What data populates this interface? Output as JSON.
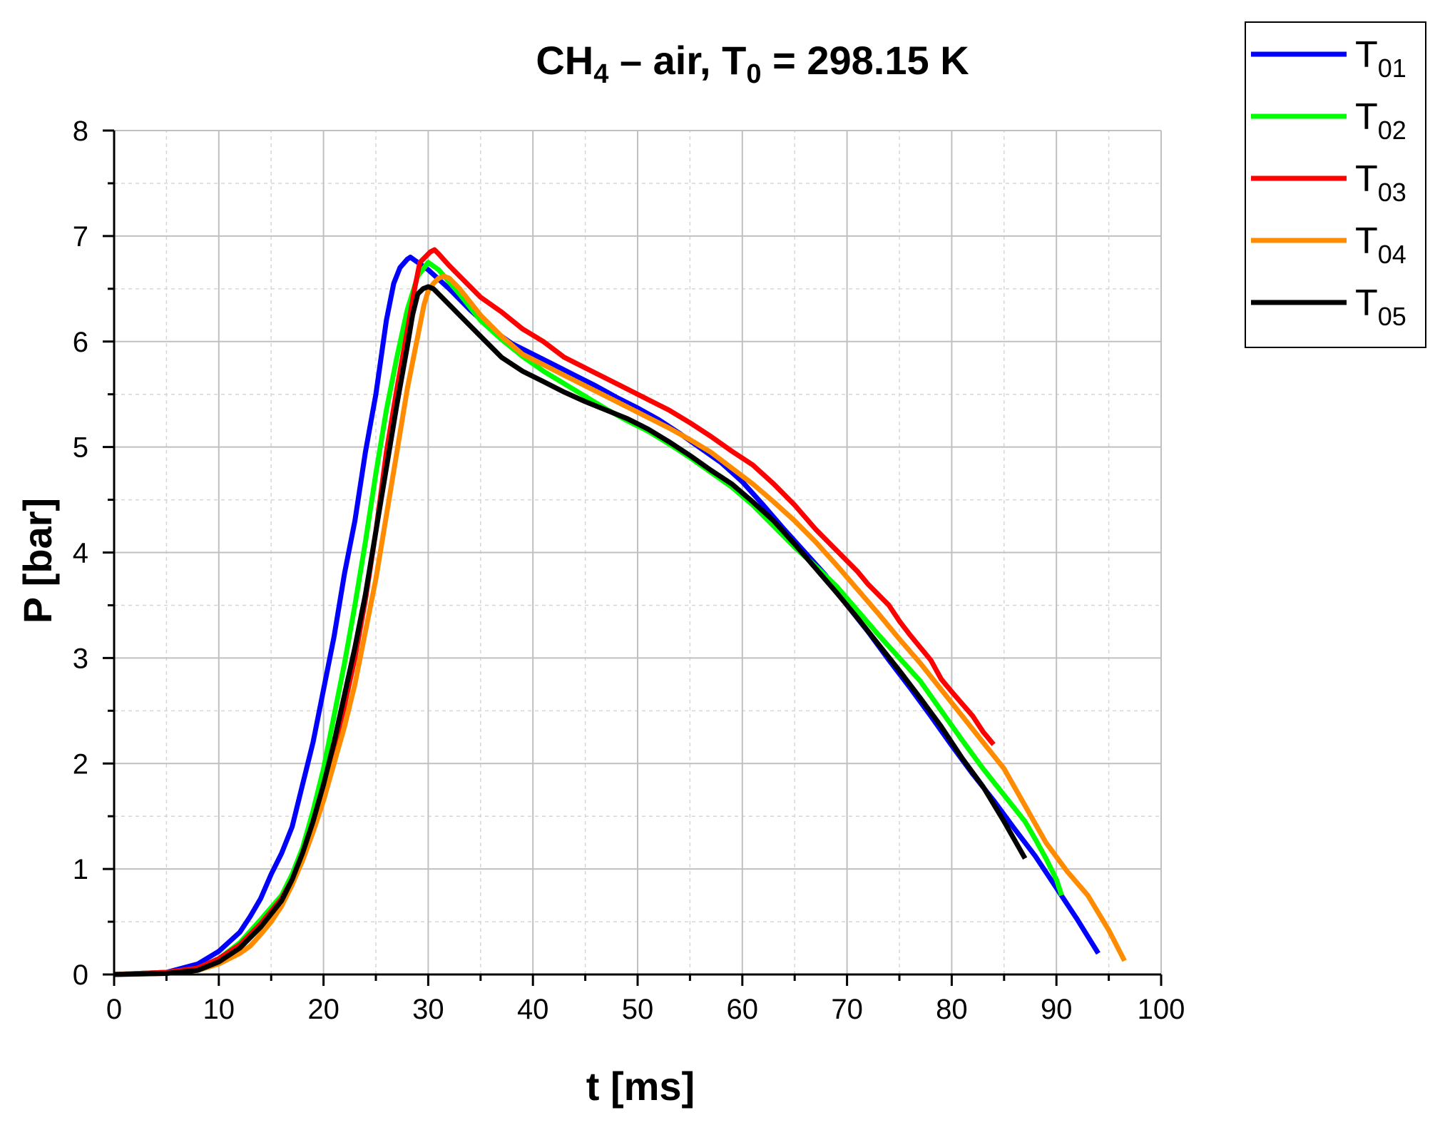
{
  "chart_data": {
    "type": "line",
    "title": {
      "prefix": "CH",
      "prefix_sub": "4",
      "middle": " – air, T",
      "middle_sub": "0",
      "suffix": " = 298.15 K"
    },
    "xlabel": "t [ms]",
    "ylabel": "P [bar]",
    "xlim": [
      0,
      100
    ],
    "ylim": [
      0,
      8
    ],
    "x_ticks": [
      "0",
      "10",
      "20",
      "30",
      "40",
      "50",
      "60",
      "70",
      "80",
      "90",
      "100"
    ],
    "y_ticks": [
      "0",
      "1",
      "2",
      "3",
      "4",
      "5",
      "6",
      "7",
      "8"
    ],
    "grid": true,
    "legend_position": "top-right outside",
    "series": [
      {
        "name": "T",
        "sub": "01",
        "color": "#0000ff",
        "points": [
          [
            0,
            0
          ],
          [
            5,
            0.02
          ],
          [
            8,
            0.1
          ],
          [
            10,
            0.22
          ],
          [
            12,
            0.4
          ],
          [
            13,
            0.55
          ],
          [
            14,
            0.72
          ],
          [
            15,
            0.95
          ],
          [
            16,
            1.15
          ],
          [
            17,
            1.4
          ],
          [
            18,
            1.8
          ],
          [
            19,
            2.2
          ],
          [
            20,
            2.7
          ],
          [
            21,
            3.2
          ],
          [
            22,
            3.8
          ],
          [
            23,
            4.3
          ],
          [
            24,
            4.95
          ],
          [
            25,
            5.5
          ],
          [
            26,
            6.2
          ],
          [
            26.7,
            6.55
          ],
          [
            27.3,
            6.7
          ],
          [
            28,
            6.78
          ],
          [
            28.3,
            6.8
          ],
          [
            29,
            6.75
          ],
          [
            30,
            6.68
          ],
          [
            32,
            6.5
          ],
          [
            34,
            6.3
          ],
          [
            36,
            6.12
          ],
          [
            38,
            5.98
          ],
          [
            40,
            5.88
          ],
          [
            42,
            5.78
          ],
          [
            44,
            5.68
          ],
          [
            46,
            5.58
          ],
          [
            48,
            5.47
          ],
          [
            50,
            5.37
          ],
          [
            52,
            5.26
          ],
          [
            54,
            5.13
          ],
          [
            56,
            4.99
          ],
          [
            58,
            4.85
          ],
          [
            60,
            4.67
          ],
          [
            62,
            4.45
          ],
          [
            64,
            4.22
          ],
          [
            66,
            4.0
          ],
          [
            68,
            3.78
          ],
          [
            70,
            3.5
          ],
          [
            72,
            3.25
          ],
          [
            74,
            2.98
          ],
          [
            76,
            2.72
          ],
          [
            78,
            2.45
          ],
          [
            80,
            2.17
          ],
          [
            82,
            1.9
          ],
          [
            84,
            1.65
          ],
          [
            86,
            1.38
          ],
          [
            88,
            1.12
          ],
          [
            90,
            0.82
          ],
          [
            92,
            0.52
          ],
          [
            94,
            0.2
          ]
        ]
      },
      {
        "name": "T",
        "sub": "02",
        "color": "#00ff00",
        "points": [
          [
            0,
            0
          ],
          [
            5,
            0.02
          ],
          [
            8,
            0.06
          ],
          [
            10,
            0.15
          ],
          [
            12,
            0.3
          ],
          [
            14,
            0.52
          ],
          [
            16,
            0.75
          ],
          [
            17,
            0.95
          ],
          [
            18,
            1.2
          ],
          [
            19,
            1.55
          ],
          [
            20,
            1.95
          ],
          [
            21,
            2.45
          ],
          [
            22,
            2.95
          ],
          [
            23,
            3.5
          ],
          [
            24,
            4.1
          ],
          [
            25,
            4.75
          ],
          [
            26,
            5.35
          ],
          [
            27,
            5.85
          ],
          [
            28,
            6.3
          ],
          [
            29,
            6.62
          ],
          [
            30,
            6.75
          ],
          [
            31,
            6.68
          ],
          [
            33,
            6.45
          ],
          [
            35,
            6.2
          ],
          [
            37,
            6.02
          ],
          [
            39,
            5.86
          ],
          [
            41,
            5.72
          ],
          [
            43,
            5.6
          ],
          [
            45,
            5.48
          ],
          [
            47,
            5.36
          ],
          [
            49,
            5.25
          ],
          [
            51,
            5.15
          ],
          [
            53,
            5.03
          ],
          [
            55,
            4.9
          ],
          [
            57,
            4.76
          ],
          [
            59,
            4.62
          ],
          [
            61,
            4.45
          ],
          [
            63,
            4.25
          ],
          [
            65,
            4.05
          ],
          [
            67,
            3.87
          ],
          [
            69,
            3.68
          ],
          [
            71,
            3.45
          ],
          [
            73,
            3.22
          ],
          [
            75,
            3.0
          ],
          [
            77,
            2.78
          ],
          [
            79,
            2.5
          ],
          [
            81,
            2.22
          ],
          [
            83,
            1.95
          ],
          [
            85,
            1.7
          ],
          [
            87,
            1.45
          ],
          [
            88,
            1.28
          ],
          [
            89,
            1.1
          ],
          [
            90,
            0.9
          ],
          [
            90.5,
            0.75
          ]
        ]
      },
      {
        "name": "T",
        "sub": "03",
        "color": "#ff0000",
        "points": [
          [
            0,
            0
          ],
          [
            5,
            0.02
          ],
          [
            8,
            0.06
          ],
          [
            10,
            0.15
          ],
          [
            12,
            0.28
          ],
          [
            14,
            0.48
          ],
          [
            16,
            0.72
          ],
          [
            17,
            0.9
          ],
          [
            18,
            1.15
          ],
          [
            19,
            1.45
          ],
          [
            20,
            1.8
          ],
          [
            21,
            2.15
          ],
          [
            22,
            2.55
          ],
          [
            23,
            3.0
          ],
          [
            24,
            3.55
          ],
          [
            25,
            4.2
          ],
          [
            26,
            4.95
          ],
          [
            27,
            5.55
          ],
          [
            28,
            6.1
          ],
          [
            28.7,
            6.5
          ],
          [
            29.2,
            6.75
          ],
          [
            29.7,
            6.8
          ],
          [
            30.2,
            6.85
          ],
          [
            30.6,
            6.87
          ],
          [
            31,
            6.83
          ],
          [
            32,
            6.72
          ],
          [
            33,
            6.62
          ],
          [
            35,
            6.42
          ],
          [
            37,
            6.28
          ],
          [
            39,
            6.12
          ],
          [
            41,
            6.0
          ],
          [
            43,
            5.85
          ],
          [
            45,
            5.75
          ],
          [
            47,
            5.65
          ],
          [
            49,
            5.55
          ],
          [
            51,
            5.45
          ],
          [
            53,
            5.35
          ],
          [
            55,
            5.23
          ],
          [
            57,
            5.1
          ],
          [
            59,
            4.96
          ],
          [
            61,
            4.83
          ],
          [
            63,
            4.65
          ],
          [
            65,
            4.45
          ],
          [
            67,
            4.22
          ],
          [
            69,
            4.02
          ],
          [
            71,
            3.82
          ],
          [
            72,
            3.7
          ],
          [
            74,
            3.5
          ],
          [
            75,
            3.35
          ],
          [
            76,
            3.22
          ],
          [
            78,
            2.98
          ],
          [
            79,
            2.8
          ],
          [
            80,
            2.68
          ],
          [
            82,
            2.45
          ],
          [
            83,
            2.3
          ],
          [
            84,
            2.18
          ]
        ]
      },
      {
        "name": "T",
        "sub": "04",
        "color": "#ff8c00",
        "points": [
          [
            0,
            0
          ],
          [
            5,
            0.01
          ],
          [
            8,
            0.04
          ],
          [
            10,
            0.1
          ],
          [
            12,
            0.2
          ],
          [
            13,
            0.27
          ],
          [
            14,
            0.38
          ],
          [
            15,
            0.5
          ],
          [
            16,
            0.65
          ],
          [
            17,
            0.85
          ],
          [
            18,
            1.08
          ],
          [
            19,
            1.35
          ],
          [
            20,
            1.65
          ],
          [
            21,
            2.0
          ],
          [
            22,
            2.35
          ],
          [
            23,
            2.75
          ],
          [
            24,
            3.25
          ],
          [
            25,
            3.75
          ],
          [
            26,
            4.35
          ],
          [
            27,
            4.95
          ],
          [
            28,
            5.55
          ],
          [
            29,
            6.05
          ],
          [
            29.6,
            6.35
          ],
          [
            30,
            6.48
          ],
          [
            30.5,
            6.55
          ],
          [
            31,
            6.6
          ],
          [
            31.5,
            6.62
          ],
          [
            32,
            6.6
          ],
          [
            33,
            6.5
          ],
          [
            35,
            6.25
          ],
          [
            37,
            6.05
          ],
          [
            39,
            5.88
          ],
          [
            41,
            5.78
          ],
          [
            43,
            5.68
          ],
          [
            45,
            5.58
          ],
          [
            47,
            5.48
          ],
          [
            49,
            5.38
          ],
          [
            51,
            5.28
          ],
          [
            53,
            5.18
          ],
          [
            55,
            5.07
          ],
          [
            57,
            4.95
          ],
          [
            59,
            4.8
          ],
          [
            61,
            4.65
          ],
          [
            63,
            4.48
          ],
          [
            65,
            4.3
          ],
          [
            67,
            4.1
          ],
          [
            69,
            3.88
          ],
          [
            71,
            3.65
          ],
          [
            73,
            3.42
          ],
          [
            75,
            3.18
          ],
          [
            77,
            2.95
          ],
          [
            79,
            2.7
          ],
          [
            81,
            2.45
          ],
          [
            83,
            2.2
          ],
          [
            85,
            1.95
          ],
          [
            87,
            1.6
          ],
          [
            89,
            1.25
          ],
          [
            91,
            0.98
          ],
          [
            93,
            0.75
          ],
          [
            95,
            0.42
          ],
          [
            96.5,
            0.13
          ]
        ]
      },
      {
        "name": "T",
        "sub": "05",
        "color": "#000000",
        "points": [
          [
            0,
            0
          ],
          [
            5,
            0.01
          ],
          [
            8,
            0.04
          ],
          [
            10,
            0.12
          ],
          [
            12,
            0.25
          ],
          [
            14,
            0.45
          ],
          [
            16,
            0.7
          ],
          [
            17,
            0.9
          ],
          [
            18,
            1.15
          ],
          [
            19,
            1.45
          ],
          [
            20,
            1.8
          ],
          [
            21,
            2.2
          ],
          [
            22,
            2.65
          ],
          [
            23,
            3.1
          ],
          [
            24,
            3.6
          ],
          [
            25,
            4.2
          ],
          [
            26,
            4.8
          ],
          [
            27,
            5.4
          ],
          [
            28,
            5.95
          ],
          [
            28.5,
            6.25
          ],
          [
            29,
            6.45
          ],
          [
            29.5,
            6.5
          ],
          [
            30,
            6.52
          ],
          [
            30.5,
            6.5
          ],
          [
            31,
            6.45
          ],
          [
            33,
            6.25
          ],
          [
            35,
            6.05
          ],
          [
            37,
            5.85
          ],
          [
            39,
            5.72
          ],
          [
            41,
            5.62
          ],
          [
            43,
            5.52
          ],
          [
            45,
            5.43
          ],
          [
            47,
            5.35
          ],
          [
            49,
            5.27
          ],
          [
            51,
            5.17
          ],
          [
            53,
            5.05
          ],
          [
            55,
            4.92
          ],
          [
            57,
            4.78
          ],
          [
            59,
            4.65
          ],
          [
            61,
            4.48
          ],
          [
            63,
            4.3
          ],
          [
            65,
            4.08
          ],
          [
            67,
            3.85
          ],
          [
            69,
            3.62
          ],
          [
            71,
            3.38
          ],
          [
            73,
            3.13
          ],
          [
            75,
            2.88
          ],
          [
            77,
            2.62
          ],
          [
            79,
            2.35
          ],
          [
            81,
            2.05
          ],
          [
            83,
            1.78
          ],
          [
            85,
            1.45
          ],
          [
            87,
            1.1
          ]
        ]
      }
    ]
  }
}
